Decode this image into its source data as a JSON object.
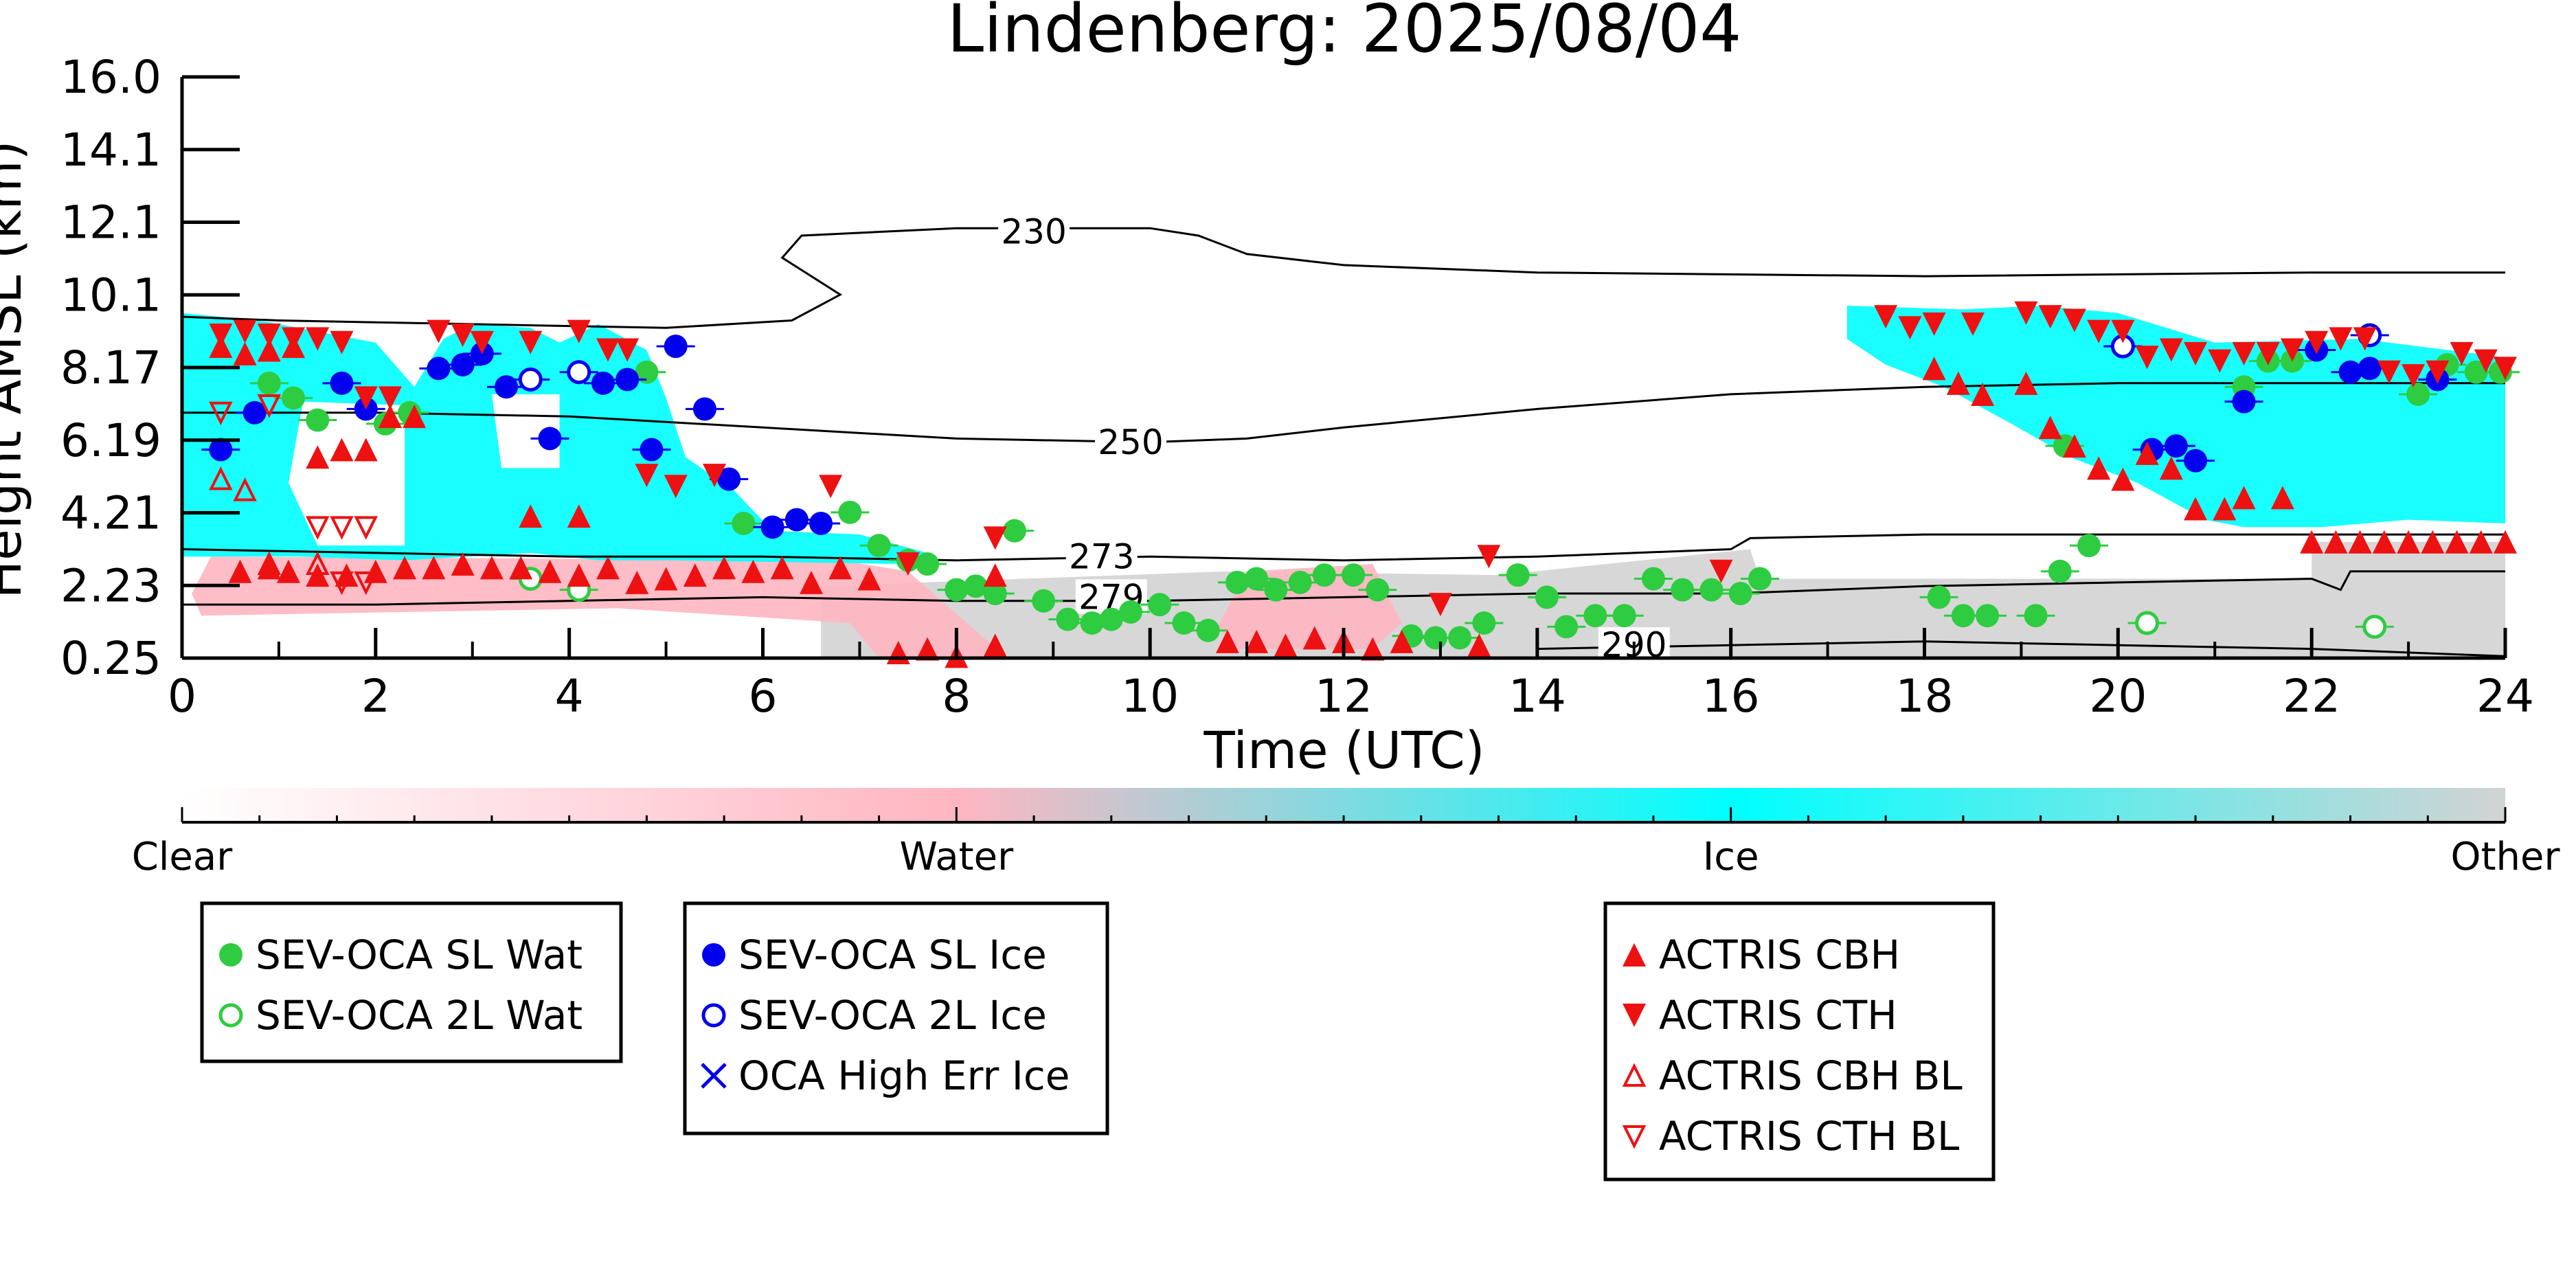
{
  "chart_data": {
    "type": "scatter",
    "title": "Lindenberg: 2025/08/04",
    "xlabel": "Time (UTC)",
    "ylabel": "Height AMSL (km)",
    "xlim": [
      0,
      24
    ],
    "ylim": [
      0.25,
      16.0
    ],
    "xticks": [
      "0",
      "2",
      "4",
      "6",
      "8",
      "10",
      "12",
      "14",
      "16",
      "18",
      "20",
      "22",
      "24"
    ],
    "yticks": [
      "0.25",
      "2.23",
      "4.21",
      "6.19",
      "8.17",
      "10.1",
      "12.1",
      "14.1",
      "16.0"
    ],
    "colorbar": {
      "labels": [
        "Clear",
        "Water",
        "Ice",
        "Other"
      ],
      "colors": [
        "#ffffff",
        "#ffb6c1",
        "#00ffff",
        "#d3d3d3"
      ]
    },
    "contours": [
      {
        "label": "230",
        "points": [
          [
            0,
            9.5
          ],
          [
            1,
            9.4
          ],
          [
            3,
            9.3
          ],
          [
            5,
            9.2
          ],
          [
            6.3,
            9.4
          ],
          [
            6.8,
            10.1
          ],
          [
            6.2,
            11.1
          ],
          [
            6.4,
            11.7
          ],
          [
            8,
            11.9
          ],
          [
            10,
            11.9
          ],
          [
            10.5,
            11.7
          ],
          [
            11,
            11.2
          ],
          [
            12,
            10.9
          ],
          [
            14,
            10.7
          ],
          [
            18,
            10.6
          ],
          [
            22,
            10.7
          ],
          [
            24,
            10.7
          ]
        ],
        "label_at": [
          8.8,
          11.8
        ]
      },
      {
        "label": "250",
        "points": [
          [
            0,
            6.9
          ],
          [
            2,
            6.9
          ],
          [
            4,
            6.8
          ],
          [
            6,
            6.5
          ],
          [
            8,
            6.2
          ],
          [
            10,
            6.1
          ],
          [
            11,
            6.2
          ],
          [
            12,
            6.5
          ],
          [
            14,
            7.0
          ],
          [
            16,
            7.4
          ],
          [
            18,
            7.6
          ],
          [
            20,
            7.7
          ],
          [
            22,
            7.7
          ],
          [
            24,
            7.7
          ]
        ],
        "label_at": [
          9.8,
          6.1
        ]
      },
      {
        "label": "273",
        "points": [
          [
            0,
            3.2
          ],
          [
            2,
            3.1
          ],
          [
            4,
            3.0
          ],
          [
            6,
            3.0
          ],
          [
            8,
            2.9
          ],
          [
            10,
            3.0
          ],
          [
            12,
            2.9
          ],
          [
            14,
            3.0
          ],
          [
            16,
            3.2
          ],
          [
            16.2,
            3.5
          ],
          [
            18,
            3.6
          ],
          [
            20,
            3.6
          ],
          [
            22,
            3.6
          ],
          [
            24,
            3.6
          ]
        ],
        "label_at": [
          9.5,
          3.0
        ]
      },
      {
        "label": "279",
        "points": [
          [
            0,
            1.7
          ],
          [
            2,
            1.7
          ],
          [
            4,
            1.8
          ],
          [
            6,
            1.9
          ],
          [
            8,
            1.8
          ],
          [
            10,
            1.8
          ],
          [
            12,
            1.9
          ],
          [
            14,
            2.0
          ],
          [
            16,
            2.0
          ],
          [
            18,
            2.2
          ],
          [
            20,
            2.3
          ],
          [
            22,
            2.4
          ],
          [
            22.3,
            2.1
          ],
          [
            22.4,
            2.6
          ],
          [
            24,
            2.6
          ]
        ],
        "label_at": [
          9.6,
          1.9
        ]
      },
      {
        "label": "290",
        "points": [
          [
            14,
            0.5
          ],
          [
            16,
            0.6
          ],
          [
            18,
            0.7
          ],
          [
            20,
            0.6
          ],
          [
            22,
            0.5
          ],
          [
            24,
            0.3
          ]
        ],
        "label_at": [
          15.0,
          0.6
        ]
      }
    ],
    "series": [
      {
        "name": "SEV-OCA SL Wat",
        "marker": "filled-circle",
        "color": "#2ecc40",
        "points": [
          [
            0.9,
            7.7
          ],
          [
            1.15,
            7.3
          ],
          [
            1.4,
            6.7
          ],
          [
            2.1,
            6.6
          ],
          [
            2.35,
            6.9
          ],
          [
            4.8,
            8.0
          ],
          [
            5.8,
            3.9
          ],
          [
            6.9,
            4.2
          ],
          [
            7.2,
            3.3
          ],
          [
            7.5,
            2.9
          ],
          [
            7.7,
            2.8
          ],
          [
            8.0,
            2.1
          ],
          [
            8.2,
            2.2
          ],
          [
            8.4,
            2.0
          ],
          [
            8.6,
            3.7
          ],
          [
            8.9,
            1.8
          ],
          [
            9.15,
            1.3
          ],
          [
            9.4,
            1.2
          ],
          [
            9.6,
            1.3
          ],
          [
            9.8,
            1.5
          ],
          [
            10.1,
            1.7
          ],
          [
            10.35,
            1.2
          ],
          [
            10.6,
            1.0
          ],
          [
            10.9,
            2.3
          ],
          [
            11.1,
            2.4
          ],
          [
            11.3,
            2.1
          ],
          [
            11.55,
            2.3
          ],
          [
            11.8,
            2.5
          ],
          [
            12.1,
            2.5
          ],
          [
            12.35,
            2.1
          ],
          [
            12.7,
            0.85
          ],
          [
            12.95,
            0.8
          ],
          [
            13.2,
            0.8
          ],
          [
            13.45,
            1.2
          ],
          [
            13.8,
            2.5
          ],
          [
            14.1,
            1.9
          ],
          [
            14.3,
            1.1
          ],
          [
            14.6,
            1.4
          ],
          [
            14.9,
            1.4
          ],
          [
            15.2,
            2.4
          ],
          [
            15.5,
            2.1
          ],
          [
            15.8,
            2.1
          ],
          [
            16.1,
            2.0
          ],
          [
            16.3,
            2.4
          ],
          [
            18.15,
            1.9
          ],
          [
            18.4,
            1.4
          ],
          [
            18.65,
            1.4
          ],
          [
            19.15,
            1.4
          ],
          [
            19.4,
            2.6
          ],
          [
            19.7,
            3.3
          ],
          [
            19.45,
            6.0
          ],
          [
            21.3,
            7.6
          ],
          [
            21.55,
            8.3
          ],
          [
            21.8,
            8.3
          ],
          [
            23.1,
            7.4
          ],
          [
            23.4,
            8.2
          ],
          [
            23.7,
            8.0
          ],
          [
            23.95,
            8.0
          ]
        ]
      },
      {
        "name": "SEV-OCA 2L Wat",
        "marker": "open-circle",
        "color": "#2ecc40",
        "points": [
          [
            3.6,
            2.4
          ],
          [
            4.1,
            2.1
          ],
          [
            20.3,
            1.2
          ],
          [
            22.65,
            1.1
          ]
        ]
      },
      {
        "name": "SEV-OCA SL Ice",
        "marker": "filled-circle",
        "color": "#0000ee",
        "points": [
          [
            0.4,
            5.9
          ],
          [
            0.75,
            6.9
          ],
          [
            1.65,
            7.7
          ],
          [
            1.9,
            7.0
          ],
          [
            2.65,
            8.1
          ],
          [
            2.9,
            8.2
          ],
          [
            3.1,
            8.5
          ],
          [
            3.35,
            7.6
          ],
          [
            3.8,
            6.2
          ],
          [
            4.35,
            7.7
          ],
          [
            4.6,
            7.8
          ],
          [
            4.85,
            5.9
          ],
          [
            5.1,
            8.7
          ],
          [
            5.4,
            7.0
          ],
          [
            5.65,
            5.1
          ],
          [
            6.1,
            3.8
          ],
          [
            6.35,
            4.0
          ],
          [
            6.6,
            3.9
          ],
          [
            20.35,
            5.9
          ],
          [
            20.6,
            6.0
          ],
          [
            20.8,
            5.6
          ],
          [
            21.3,
            7.2
          ],
          [
            22.05,
            8.6
          ],
          [
            22.4,
            8.0
          ],
          [
            22.6,
            8.1
          ],
          [
            23.3,
            7.8
          ]
        ]
      },
      {
        "name": "SEV-OCA 2L Ice",
        "marker": "open-circle",
        "color": "#0000ee",
        "points": [
          [
            3.6,
            7.8
          ],
          [
            4.1,
            8.0
          ],
          [
            20.05,
            8.7
          ],
          [
            22.6,
            9.0
          ]
        ]
      },
      {
        "name": "OCA High Err Ice",
        "marker": "x",
        "color": "#0000ee",
        "points": []
      },
      {
        "name": "ACTRIS CBH",
        "marker": "triangle-up",
        "color": "#ee1111",
        "points": [
          [
            0.4,
            8.7
          ],
          [
            0.65,
            8.5
          ],
          [
            0.9,
            8.6
          ],
          [
            1.15,
            8.7
          ],
          [
            1.4,
            5.7
          ],
          [
            1.65,
            5.9
          ],
          [
            1.9,
            5.9
          ],
          [
            2.15,
            6.8
          ],
          [
            2.4,
            6.8
          ],
          [
            3.6,
            4.1
          ],
          [
            4.1,
            4.1
          ],
          [
            0.6,
            2.6
          ],
          [
            0.9,
            2.7
          ],
          [
            1.1,
            2.6
          ],
          [
            1.4,
            2.5
          ],
          [
            1.7,
            2.5
          ],
          [
            2.0,
            2.6
          ],
          [
            2.3,
            2.7
          ],
          [
            2.6,
            2.7
          ],
          [
            2.9,
            2.8
          ],
          [
            3.2,
            2.7
          ],
          [
            3.5,
            2.7
          ],
          [
            3.8,
            2.6
          ],
          [
            4.1,
            2.5
          ],
          [
            4.4,
            2.7
          ],
          [
            4.7,
            2.3
          ],
          [
            5.0,
            2.4
          ],
          [
            5.3,
            2.5
          ],
          [
            5.6,
            2.7
          ],
          [
            5.9,
            2.6
          ],
          [
            6.2,
            2.7
          ],
          [
            6.5,
            2.3
          ],
          [
            6.8,
            2.7
          ],
          [
            7.1,
            2.4
          ],
          [
            7.4,
            0.4
          ],
          [
            7.7,
            0.5
          ],
          [
            8.0,
            0.3
          ],
          [
            8.4,
            0.6
          ],
          [
            8.4,
            2.5
          ],
          [
            10.8,
            0.7
          ],
          [
            11.1,
            0.7
          ],
          [
            11.4,
            0.6
          ],
          [
            11.7,
            0.8
          ],
          [
            12.0,
            0.7
          ],
          [
            12.3,
            0.5
          ],
          [
            12.6,
            0.7
          ],
          [
            13.4,
            0.6
          ],
          [
            18.1,
            8.1
          ],
          [
            18.35,
            7.7
          ],
          [
            18.6,
            7.4
          ],
          [
            19.05,
            7.7
          ],
          [
            19.3,
            6.5
          ],
          [
            19.55,
            6.0
          ],
          [
            19.8,
            5.4
          ],
          [
            20.05,
            5.1
          ],
          [
            20.3,
            5.8
          ],
          [
            20.55,
            5.4
          ],
          [
            20.8,
            4.3
          ],
          [
            21.1,
            4.3
          ],
          [
            21.3,
            4.6
          ],
          [
            21.7,
            4.6
          ],
          [
            22.0,
            3.4
          ],
          [
            22.25,
            3.4
          ],
          [
            22.5,
            3.4
          ],
          [
            22.75,
            3.4
          ],
          [
            23.0,
            3.4
          ],
          [
            23.25,
            3.4
          ],
          [
            23.5,
            3.4
          ],
          [
            23.75,
            3.4
          ],
          [
            24.0,
            3.4
          ]
        ]
      },
      {
        "name": "ACTRIS CTH",
        "marker": "triangle-down",
        "color": "#ee1111",
        "points": [
          [
            0.4,
            9.0
          ],
          [
            0.65,
            9.1
          ],
          [
            0.9,
            9.0
          ],
          [
            1.15,
            8.9
          ],
          [
            1.4,
            8.9
          ],
          [
            1.65,
            8.8
          ],
          [
            1.9,
            7.3
          ],
          [
            2.15,
            7.3
          ],
          [
            2.65,
            9.1
          ],
          [
            2.9,
            9.0
          ],
          [
            3.1,
            8.8
          ],
          [
            3.6,
            8.8
          ],
          [
            4.1,
            9.1
          ],
          [
            4.4,
            8.6
          ],
          [
            4.6,
            8.6
          ],
          [
            4.8,
            5.2
          ],
          [
            5.1,
            4.9
          ],
          [
            5.5,
            5.2
          ],
          [
            6.7,
            4.9
          ],
          [
            7.5,
            2.8
          ],
          [
            8.4,
            3.5
          ],
          [
            13.0,
            1.7
          ],
          [
            13.5,
            3.0
          ],
          [
            15.9,
            2.6
          ],
          [
            17.6,
            9.5
          ],
          [
            17.85,
            9.2
          ],
          [
            18.1,
            9.3
          ],
          [
            18.5,
            9.3
          ],
          [
            19.05,
            9.6
          ],
          [
            19.3,
            9.5
          ],
          [
            19.55,
            9.4
          ],
          [
            19.8,
            9.1
          ],
          [
            20.05,
            9.1
          ],
          [
            20.3,
            8.4
          ],
          [
            20.55,
            8.6
          ],
          [
            20.8,
            8.5
          ],
          [
            21.05,
            8.3
          ],
          [
            21.3,
            8.5
          ],
          [
            21.55,
            8.5
          ],
          [
            21.8,
            8.6
          ],
          [
            22.05,
            8.8
          ],
          [
            22.3,
            8.9
          ],
          [
            22.55,
            8.9
          ],
          [
            22.8,
            8.0
          ],
          [
            23.05,
            7.9
          ],
          [
            23.3,
            8.0
          ],
          [
            23.55,
            8.5
          ],
          [
            23.8,
            8.3
          ],
          [
            24.0,
            8.1
          ]
        ]
      },
      {
        "name": "ACTRIS CBH BL",
        "marker": "open-triangle-up",
        "color": "#ee1111",
        "points": [
          [
            0.4,
            5.1
          ],
          [
            0.65,
            4.8
          ],
          [
            0.9,
            2.8
          ],
          [
            1.4,
            2.8
          ]
        ]
      },
      {
        "name": "ACTRIS CTH BL",
        "marker": "open-triangle-down",
        "color": "#ee1111",
        "points": [
          [
            0.4,
            6.9
          ],
          [
            0.9,
            7.1
          ],
          [
            1.4,
            3.8
          ],
          [
            1.65,
            3.8
          ],
          [
            1.9,
            3.8
          ],
          [
            1.65,
            2.3
          ],
          [
            1.9,
            2.3
          ]
        ]
      }
    ],
    "legends": [
      [
        "SEV-OCA SL Wat",
        "SEV-OCA 2L Wat"
      ],
      [
        "SEV-OCA SL Ice",
        "SEV-OCA 2L Ice",
        "OCA High Err Ice"
      ],
      [
        "ACTRIS CBH",
        "ACTRIS CTH",
        "ACTRIS CBH BL",
        "ACTRIS CTH BL"
      ]
    ]
  }
}
